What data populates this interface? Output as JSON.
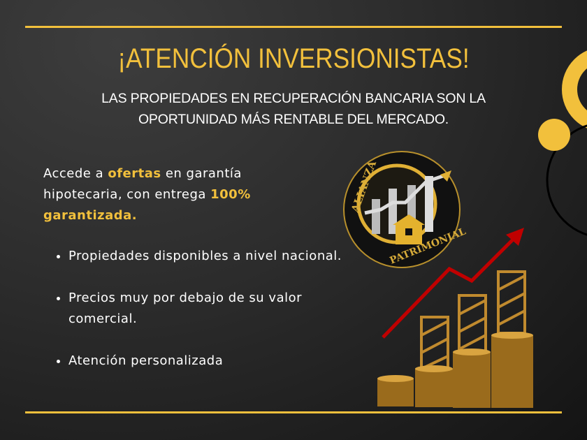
{
  "title": "¡ATENCIÓN INVERSIONISTAS!",
  "subtitle": [
    "LAS PROPIEDADES EN RECUPERACIÓN BANCARIA SON LA",
    "OPORTUNIDAD MÁS RENTABLE DEL MERCADO."
  ],
  "intro": {
    "part1": "Accede a ",
    "highlight1": "ofertas",
    "part2": " en garantía hipotecaria, con entrega ",
    "highlight2": "100% garantizada."
  },
  "bullets": [
    "Propiedades disponibles a nivel nacional.",
    "Precios muy por debajo de su valor comercial.",
    "Atención personalizada"
  ],
  "logo": {
    "text_top": "ALIANZA",
    "text_bottom": "PATRIMONIAL"
  },
  "colors": {
    "accent": "#f2c03c",
    "arrow": "#c00000",
    "background": "#2c2c2c"
  }
}
